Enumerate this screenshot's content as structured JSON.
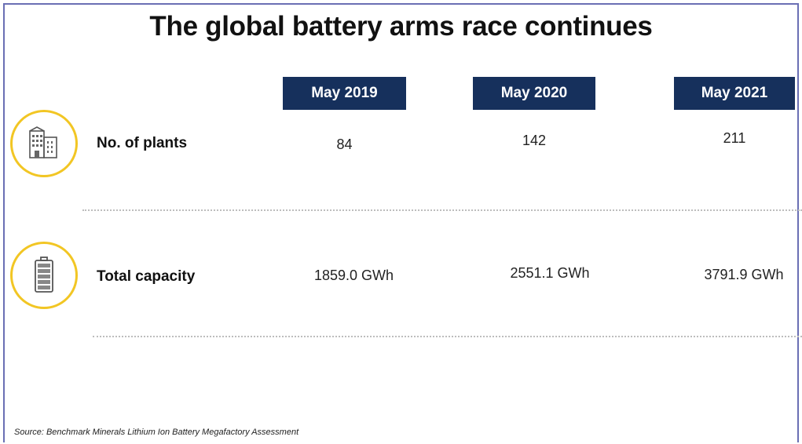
{
  "chart_data": {
    "type": "table",
    "title": "The global battery arms race continues",
    "columns": [
      "May 2019",
      "May 2020",
      "May 2021"
    ],
    "rows": [
      {
        "label": "No. of plants",
        "icon": "factory-icon",
        "values": [
          "84",
          "142",
          "211"
        ]
      },
      {
        "label": "Total capacity",
        "icon": "battery-icon",
        "values": [
          "1859.0 GWh",
          "2551.1 GWh",
          "3791.9 GWh"
        ]
      }
    ],
    "source": "Source: Benchmark Minerals Lithium Ion Battery Megafactory Assessment"
  },
  "colors": {
    "header_bg": "#16305c",
    "accent_circle": "#f2c624",
    "frame": "#6a6fb4"
  }
}
